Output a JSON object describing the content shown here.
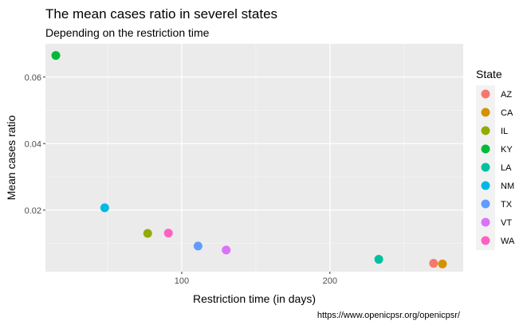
{
  "chart_data": {
    "type": "scatter",
    "title": "The mean cases ratio in severel states",
    "subtitle": "Depending on the restriction time",
    "xlabel": "Restriction time (in days)",
    "ylabel": "Mean cases ratio",
    "caption": "https://www.openicpsr.org/openicpsr/",
    "xlim": [
      8,
      290
    ],
    "ylim": [
      0.0015,
      0.07
    ],
    "x_ticks": [
      100,
      200
    ],
    "y_ticks": [
      0.02,
      0.04,
      0.06
    ],
    "x_tick_labels": [
      "100",
      "200"
    ],
    "y_tick_labels": [
      "0.02",
      "0.04",
      "0.06"
    ],
    "x_minor": [
      50,
      150,
      250
    ],
    "y_minor": [
      0.01,
      0.03,
      0.05
    ],
    "grid": true,
    "legend": {
      "title": "State",
      "position": "right",
      "entries": [
        "AZ",
        "CA",
        "IL",
        "KY",
        "LA",
        "NM",
        "TX",
        "VT",
        "WA"
      ]
    },
    "series": [
      {
        "name": "AZ",
        "color": "#F8766D",
        "x": 270,
        "y": 0.004
      },
      {
        "name": "CA",
        "color": "#D39200",
        "x": 276,
        "y": 0.0038
      },
      {
        "name": "IL",
        "color": "#93AA00",
        "x": 77,
        "y": 0.013
      },
      {
        "name": "KY",
        "color": "#00BA38",
        "x": 15,
        "y": 0.0665
      },
      {
        "name": "LA",
        "color": "#00C19F",
        "x": 233,
        "y": 0.0052
      },
      {
        "name": "NM",
        "color": "#00B9E3",
        "x": 48,
        "y": 0.0207
      },
      {
        "name": "TX",
        "color": "#619CFF",
        "x": 111,
        "y": 0.0092
      },
      {
        "name": "VT",
        "color": "#DB72FB",
        "x": 130,
        "y": 0.008
      },
      {
        "name": "WA",
        "color": "#FF61C3",
        "x": 91,
        "y": 0.0131
      }
    ]
  }
}
